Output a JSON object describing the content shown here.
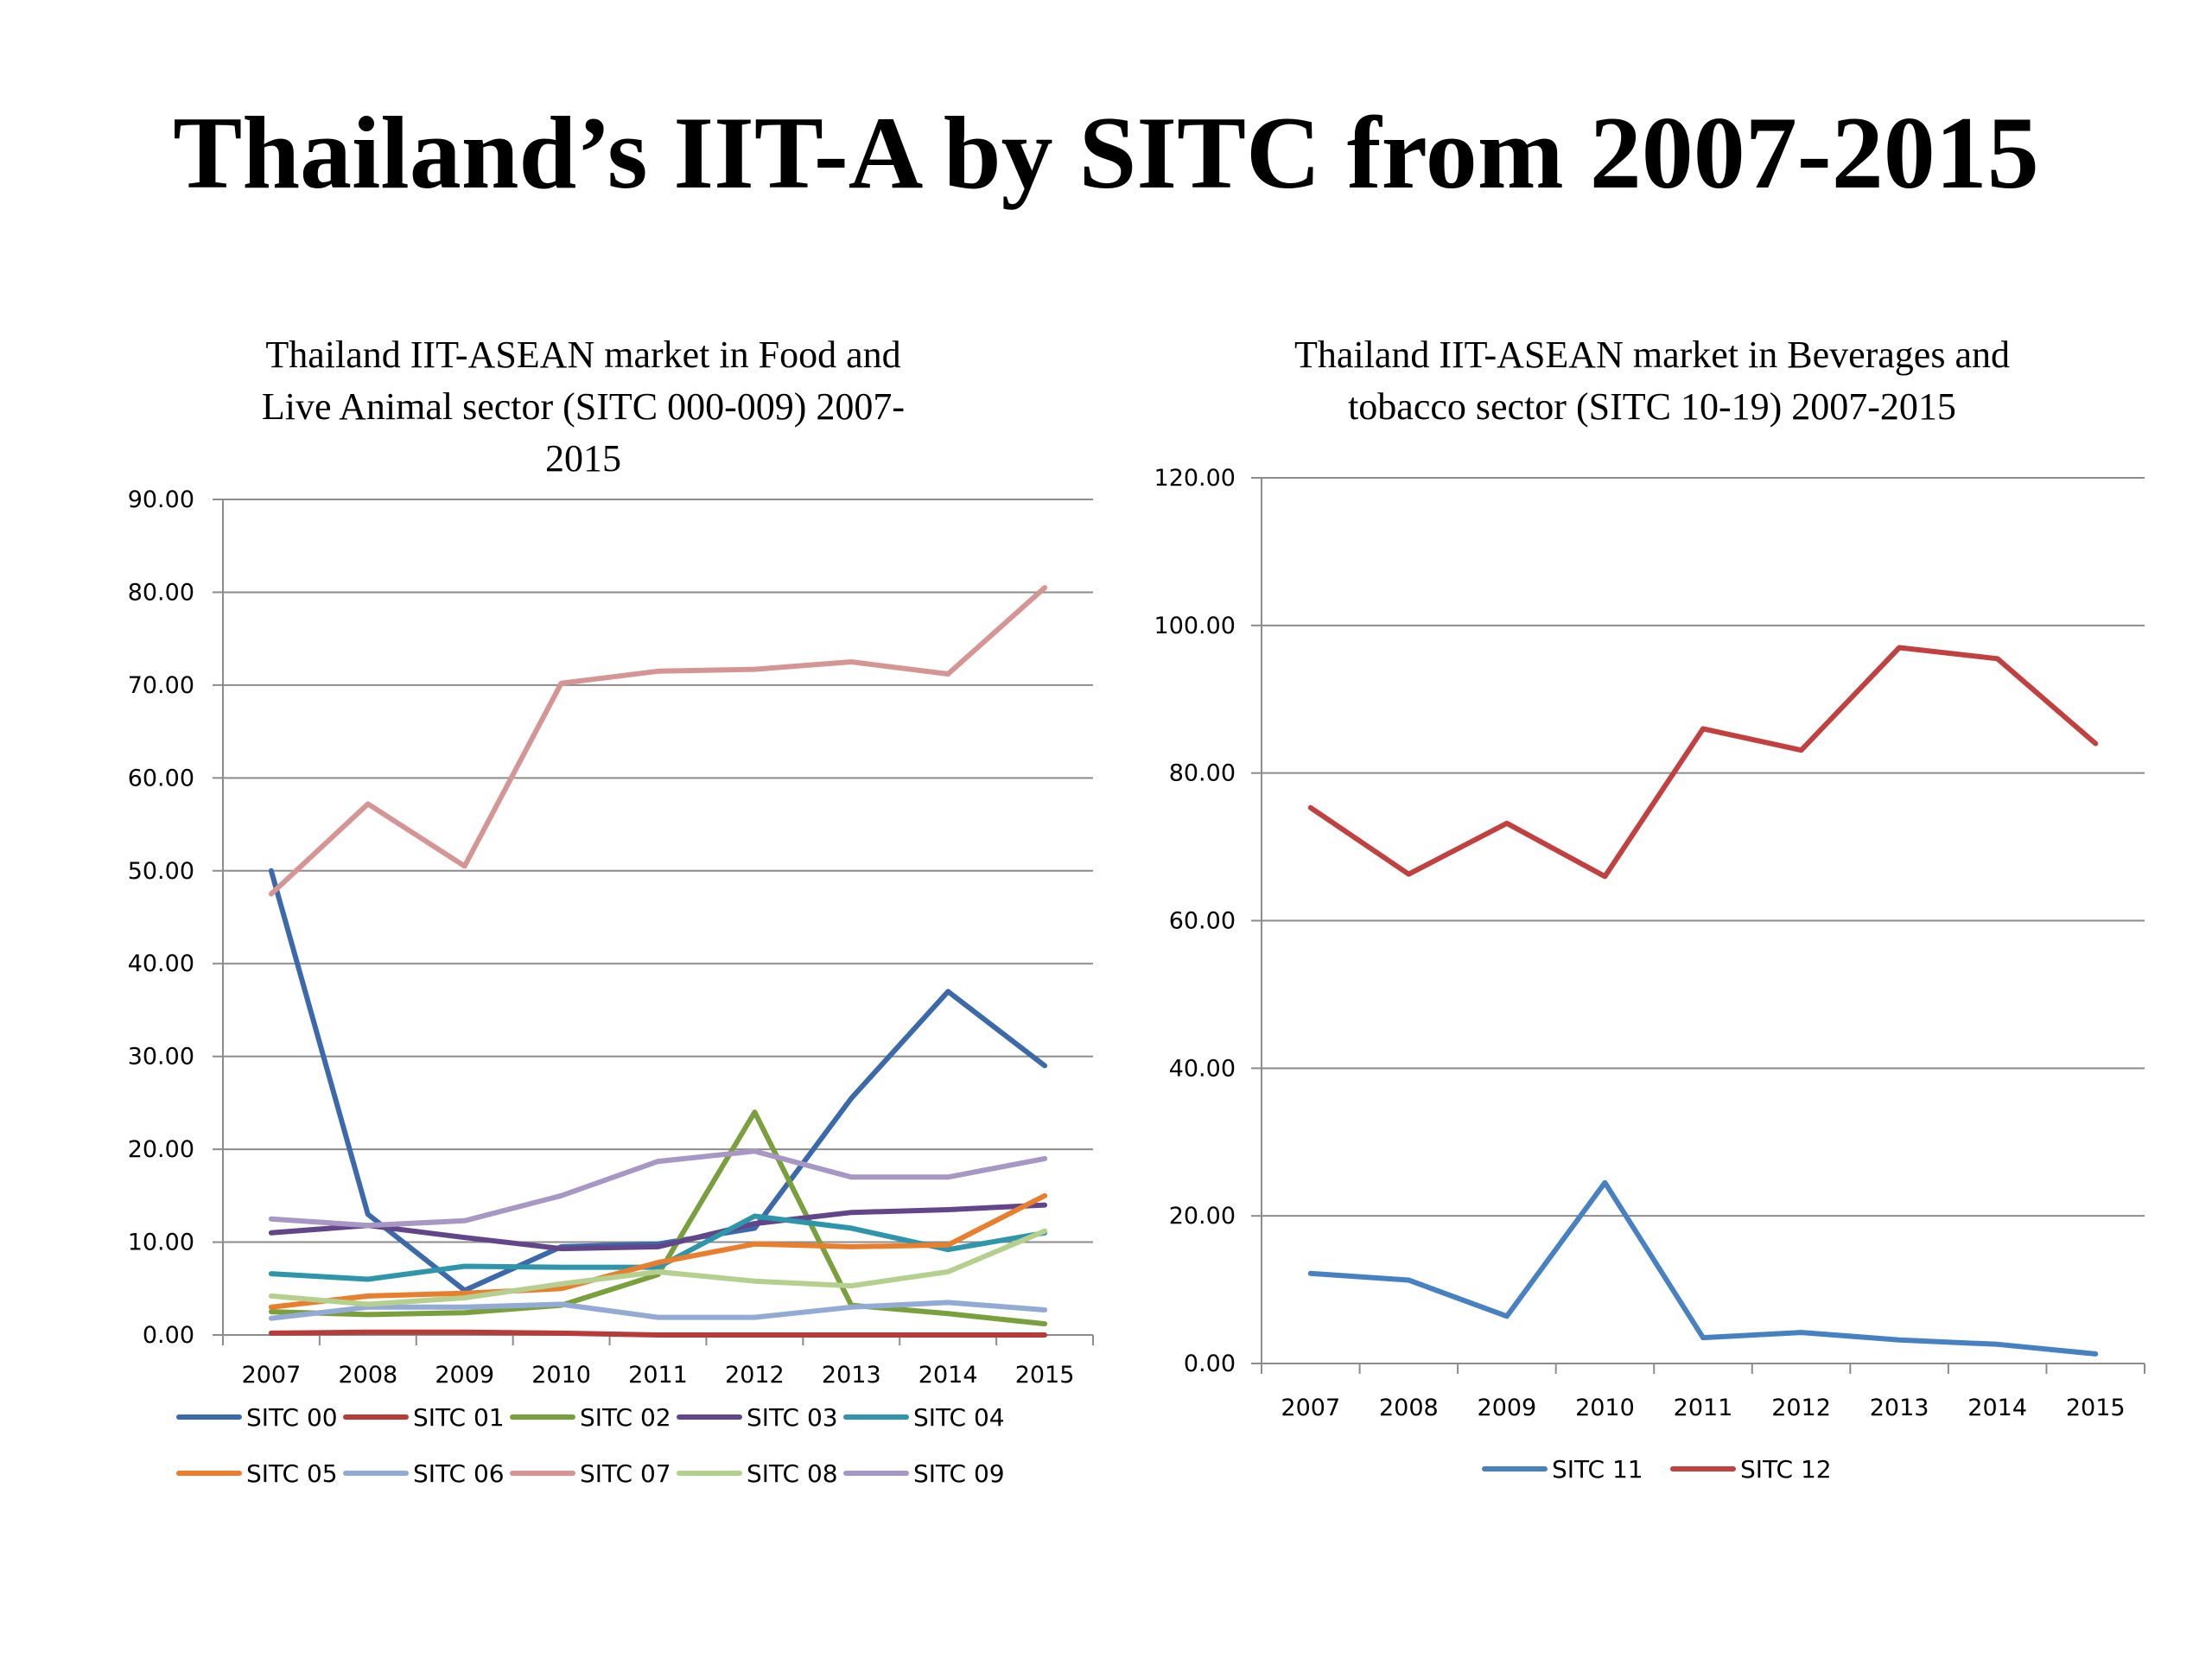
{
  "slide": {
    "title": "Thailand’s IIT-A by SITC from 2007-2015"
  },
  "chart_data": [
    {
      "type": "line",
      "title_lines": [
        "Thailand IIT-ASEAN market in Food and",
        "Live Animal sector (SITC 000-009) 2007-",
        "2015"
      ],
      "xlabel": "",
      "ylabel": "",
      "categories": [
        "2007",
        "2008",
        "2009",
        "2010",
        "2011",
        "2012",
        "2013",
        "2014",
        "2015"
      ],
      "ylim": [
        0,
        90
      ],
      "yticks": [
        "0.00",
        "10.00",
        "20.00",
        "30.00",
        "40.00",
        "50.00",
        "60.00",
        "70.00",
        "80.00",
        "90.00"
      ],
      "grid": true,
      "legend_position": "bottom",
      "series": [
        {
          "name": "SITC 00",
          "color": "#3b69a9",
          "values": [
            50.0,
            13.0,
            4.8,
            9.5,
            9.8,
            11.5,
            25.5,
            37.0,
            29.0
          ]
        },
        {
          "name": "SITC 01",
          "color": "#b53c39",
          "values": [
            0.2,
            0.3,
            0.3,
            0.2,
            0.0,
            0.0,
            0.0,
            0.0,
            0.0
          ]
        },
        {
          "name": "SITC 02",
          "color": "#79a03c",
          "values": [
            2.5,
            2.2,
            2.4,
            3.2,
            6.5,
            24.0,
            3.2,
            2.3,
            1.2
          ]
        },
        {
          "name": "SITC 03",
          "color": "#624689",
          "values": [
            11.0,
            11.8,
            10.5,
            9.3,
            9.5,
            12.0,
            13.2,
            13.5,
            14.0
          ]
        },
        {
          "name": "SITC 04",
          "color": "#2e95ab",
          "values": [
            6.6,
            6.0,
            7.4,
            7.3,
            7.3,
            12.8,
            11.5,
            9.2,
            11.0
          ]
        },
        {
          "name": "SITC 05",
          "color": "#e87f2e",
          "values": [
            3.0,
            4.2,
            4.5,
            5.0,
            7.8,
            9.8,
            9.5,
            9.7,
            15.0
          ]
        },
        {
          "name": "SITC 06",
          "color": "#93aad5",
          "values": [
            1.8,
            3.0,
            3.0,
            3.3,
            1.9,
            1.9,
            3.0,
            3.5,
            2.7
          ]
        },
        {
          "name": "SITC 07",
          "color": "#d59594",
          "values": [
            47.5,
            57.2,
            50.5,
            70.2,
            71.5,
            71.7,
            72.5,
            71.2,
            80.5
          ]
        },
        {
          "name": "SITC 08",
          "color": "#b5d08e",
          "values": [
            4.2,
            3.3,
            4.0,
            5.5,
            6.8,
            5.8,
            5.3,
            6.8,
            11.2
          ]
        },
        {
          "name": "SITC 09",
          "color": "#a797c4",
          "values": [
            12.5,
            11.8,
            12.3,
            15.0,
            18.7,
            19.8,
            17.0,
            17.0,
            19.0
          ]
        }
      ]
    },
    {
      "type": "line",
      "title_lines": [
        "Thailand IIT-ASEAN market in Beverages and",
        "tobacco sector (SITC 10-19) 2007-2015"
      ],
      "xlabel": "",
      "ylabel": "",
      "categories": [
        "2007",
        "2008",
        "2009",
        "2010",
        "2011",
        "2012",
        "2013",
        "2014",
        "2015"
      ],
      "ylim": [
        0,
        120
      ],
      "yticks": [
        "0.00",
        "20.00",
        "40.00",
        "60.00",
        "80.00",
        "100.00",
        "120.00"
      ],
      "grid": true,
      "legend_position": "bottom",
      "series": [
        {
          "name": "SITC 11",
          "color": "#4781c2",
          "values": [
            12.2,
            11.3,
            6.4,
            24.5,
            3.5,
            4.2,
            3.2,
            2.6,
            1.3
          ]
        },
        {
          "name": "SITC 12",
          "color": "#c0413f",
          "values": [
            75.3,
            66.3,
            73.2,
            66.0,
            86.0,
            83.1,
            97.0,
            95.5,
            84.0
          ]
        }
      ]
    }
  ]
}
